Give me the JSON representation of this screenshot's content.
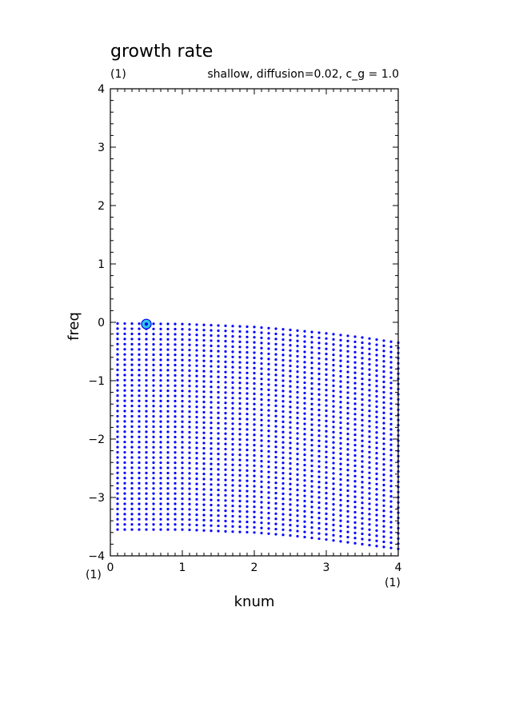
{
  "chart_data": {
    "type": "scatter",
    "title": "growth rate",
    "panel_label": "(1)",
    "subtitle": "shallow, diffusion=0.02, c_g = 1.0",
    "xlabel": "knum",
    "ylabel": "freq",
    "xlim": [
      0,
      4
    ],
    "ylim": [
      -4,
      4
    ],
    "x_ticks": [
      0,
      1,
      2,
      3,
      4
    ],
    "y_ticks": [
      -4,
      -3,
      -2,
      -1,
      0,
      1,
      2,
      3,
      4
    ],
    "x_tick_labels": [
      "0",
      "1",
      "2",
      "3",
      "4"
    ],
    "y_tick_labels": [
      "−4",
      "−3",
      "−2",
      "−1",
      "0",
      "1",
      "2",
      "3",
      "4"
    ],
    "x_corner_label_left": "(1)",
    "x_corner_label_right": "(1)",
    "grid": false,
    "marker_color": "#0000ff",
    "highlight_color": "#33c3e0",
    "sampling": {
      "x_start": 0.1,
      "x_step": 0.1,
      "x_count": 40,
      "modes_per_column": 41
    },
    "envelope": {
      "x": [
        0.1,
        1.0,
        2.0,
        2.5,
        3.0,
        3.5,
        4.0
      ],
      "top": [
        -0.02,
        -0.03,
        -0.08,
        -0.13,
        -0.19,
        -0.26,
        -0.35
      ],
      "bottom": [
        -3.55,
        -3.55,
        -3.6,
        -3.65,
        -3.72,
        -3.8,
        -3.88
      ]
    },
    "highlight_point": {
      "x": 0.5,
      "y": -0.03
    }
  }
}
